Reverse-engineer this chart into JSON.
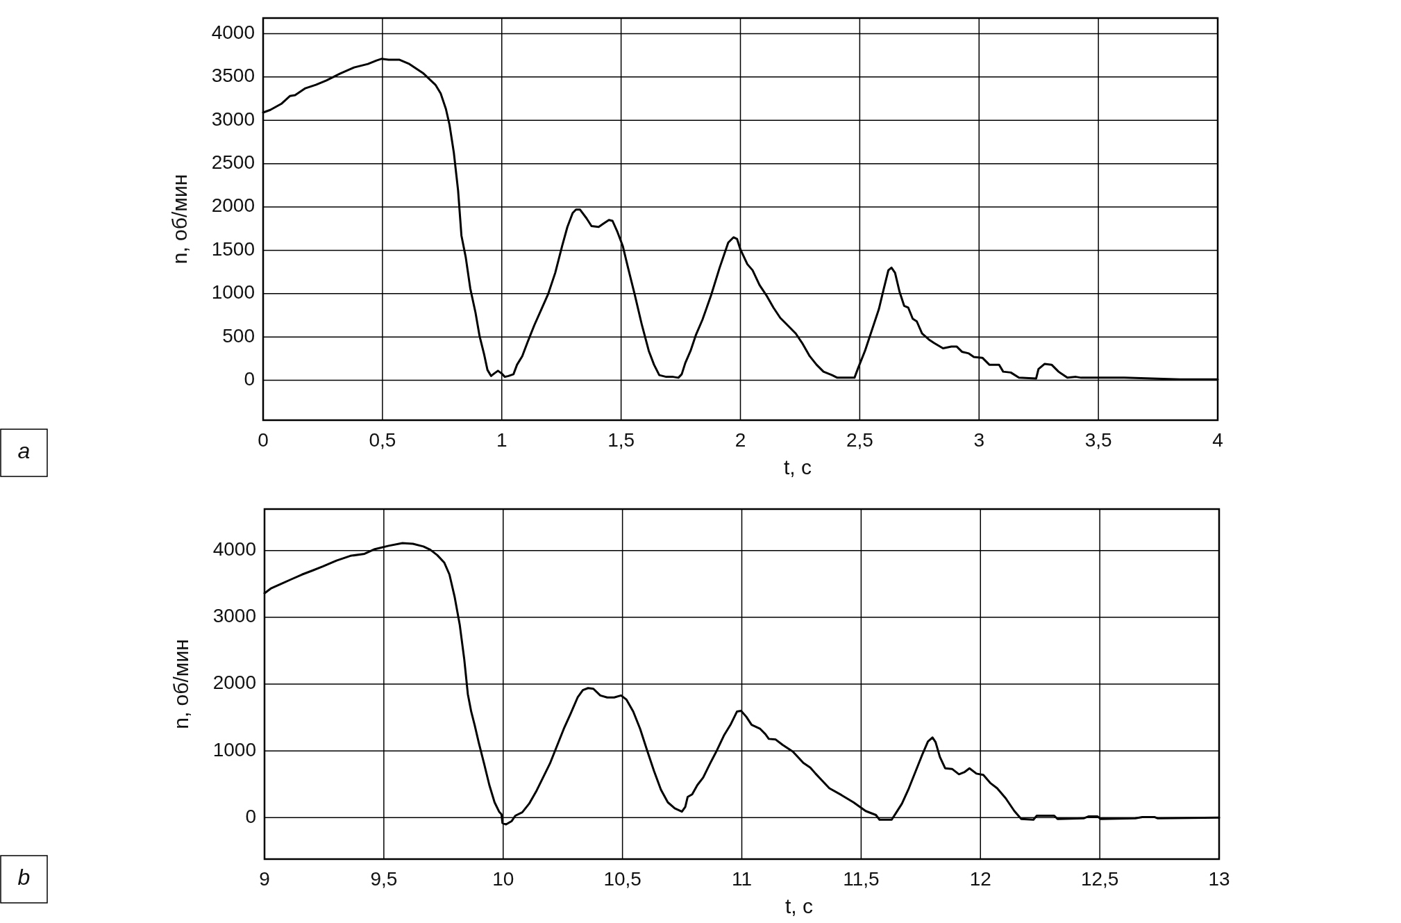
{
  "chart_data": [
    {
      "type": "line",
      "annotations": [
        "a"
      ],
      "xlabel": "t, с",
      "ylabel": "n, об/мин",
      "xlim": [
        0,
        4
      ],
      "ylim": [
        -460,
        4180
      ],
      "xticks": [
        0,
        {
          "value": 0.5,
          "label": "0,5"
        },
        1,
        {
          "value": 1.5,
          "label": "1,5"
        },
        2,
        {
          "value": 2.5,
          "label": "2,5"
        },
        3,
        {
          "value": 3.5,
          "label": "3,5"
        },
        4
      ],
      "yticks": [
        0,
        500,
        1000,
        1500,
        2000,
        2500,
        3000,
        3500,
        4000
      ],
      "grid": true,
      "series": [
        {
          "color": "#000000",
          "x": [
            0,
            0.03,
            0.076,
            0.112,
            0.134,
            0.177,
            0.221,
            0.265,
            0.323,
            0.381,
            0.439,
            0.475,
            0.497,
            0.526,
            0.57,
            0.613,
            0.672,
            0.722,
            0.744,
            0.766,
            0.781,
            0.799,
            0.817,
            0.831,
            0.849,
            0.868,
            0.89,
            0.907,
            0.926,
            0.94,
            0.955,
            0.969,
            0.984,
            0.999,
            1.013,
            1.028,
            1.049,
            1.064,
            1.086,
            1.108,
            1.137,
            1.166,
            1.195,
            1.224,
            1.253,
            1.275,
            1.297,
            1.311,
            1.328,
            1.355,
            1.376,
            1.406,
            1.427,
            1.449,
            1.464,
            1.485,
            1.507,
            1.529,
            1.558,
            1.587,
            1.616,
            1.638,
            1.66,
            1.689,
            1.718,
            1.74,
            1.754,
            1.769,
            1.791,
            1.813,
            1.841,
            1.877,
            1.913,
            1.949,
            1.971,
            1.986,
            2.0,
            2.029,
            2.051,
            2.08,
            2.109,
            2.138,
            2.167,
            2.196,
            2.232,
            2.261,
            2.29,
            2.319,
            2.348,
            2.384,
            2.406,
            2.478,
            2.493,
            2.522,
            2.551,
            2.58,
            2.601,
            2.62,
            2.633,
            2.648,
            2.667,
            2.686,
            2.703,
            2.722,
            2.739,
            2.761,
            2.79,
            2.812,
            2.849,
            2.884,
            2.906,
            2.928,
            2.957,
            2.978,
            3.014,
            3.043,
            3.084,
            3.101,
            3.133,
            3.167,
            3.239,
            3.249,
            3.275,
            3.304,
            3.333,
            3.37,
            3.406,
            3.428,
            3.609,
            3.841,
            4.0
          ],
          "values": [
            3090,
            3120,
            3190,
            3280,
            3290,
            3370,
            3410,
            3460,
            3540,
            3610,
            3650,
            3690,
            3710,
            3700,
            3700,
            3650,
            3540,
            3410,
            3310,
            3130,
            2950,
            2630,
            2190,
            1670,
            1420,
            1060,
            780,
            510,
            300,
            120,
            50,
            80,
            110,
            80,
            40,
            50,
            70,
            180,
            280,
            440,
            640,
            820,
            1000,
            1240,
            1550,
            1770,
            1930,
            1970,
            1970,
            1870,
            1780,
            1770,
            1810,
            1850,
            1840,
            1710,
            1550,
            1300,
            980,
            640,
            340,
            180,
            60,
            40,
            40,
            30,
            70,
            200,
            340,
            520,
            700,
            980,
            1300,
            1590,
            1650,
            1630,
            1510,
            1340,
            1270,
            1100,
            980,
            840,
            720,
            640,
            540,
            420,
            280,
            180,
            100,
            60,
            30,
            30,
            140,
            340,
            580,
            820,
            1060,
            1270,
            1300,
            1240,
            1020,
            860,
            840,
            710,
            680,
            540,
            470,
            430,
            370,
            390,
            390,
            330,
            310,
            270,
            260,
            180,
            180,
            100,
            90,
            30,
            20,
            130,
            190,
            180,
            100,
            30,
            40,
            30,
            30,
            10,
            10
          ]
        }
      ]
    },
    {
      "type": "line",
      "annotations": [
        "b"
      ],
      "xlabel": "t, с",
      "ylabel": "n, об/мин",
      "xlim": [
        9,
        13
      ],
      "ylim": [
        -620,
        4620
      ],
      "xticks": [
        9,
        {
          "value": 9.5,
          "label": "9,5"
        },
        10,
        {
          "value": 10.5,
          "label": "10,5"
        },
        11,
        {
          "value": 11.5,
          "label": "11,5"
        },
        12,
        {
          "value": 12.5,
          "label": "12,5"
        },
        13
      ],
      "yticks": [
        0,
        1000,
        2000,
        3000,
        4000
      ],
      "grid": true,
      "series": [
        {
          "color": "#000000",
          "x": [
            9.0,
            9.026,
            9.07,
            9.113,
            9.157,
            9.201,
            9.244,
            9.302,
            9.36,
            9.419,
            9.462,
            9.52,
            9.578,
            9.622,
            9.666,
            9.695,
            9.724,
            9.753,
            9.775,
            9.797,
            9.818,
            9.837,
            9.852,
            9.866,
            9.881,
            9.898,
            9.92,
            9.942,
            9.964,
            9.983,
            9.993,
            9.997,
            10.012,
            10.036,
            10.051,
            10.08,
            10.109,
            10.138,
            10.167,
            10.196,
            10.225,
            10.254,
            10.283,
            10.312,
            10.334,
            10.356,
            10.378,
            10.407,
            10.436,
            10.465,
            10.494,
            10.516,
            10.545,
            10.574,
            10.603,
            10.632,
            10.661,
            10.69,
            10.719,
            10.749,
            10.763,
            10.773,
            10.792,
            10.814,
            10.838,
            10.867,
            10.896,
            10.925,
            10.954,
            10.98,
            10.997,
            11.019,
            11.041,
            11.077,
            11.099,
            11.113,
            11.142,
            11.171,
            11.214,
            11.258,
            11.287,
            11.309,
            11.338,
            11.367,
            11.417,
            11.468,
            11.519,
            11.562,
            11.577,
            11.628,
            11.646,
            11.671,
            11.7,
            11.729,
            11.758,
            11.78,
            11.799,
            11.812,
            11.83,
            11.852,
            11.881,
            11.91,
            11.932,
            11.954,
            11.983,
            12.012,
            12.041,
            12.07,
            12.106,
            12.142,
            12.171,
            12.222,
            12.236,
            12.309,
            12.323,
            12.432,
            12.454,
            12.49,
            12.504,
            12.649,
            12.678,
            12.729,
            12.743,
            13.0
          ],
          "values": [
            3360,
            3430,
            3500,
            3570,
            3640,
            3700,
            3760,
            3850,
            3920,
            3950,
            4020,
            4070,
            4110,
            4100,
            4060,
            4010,
            3930,
            3820,
            3640,
            3300,
            2890,
            2370,
            1850,
            1590,
            1380,
            1120,
            810,
            490,
            230,
            90,
            50,
            -80,
            -100,
            -50,
            30,
            80,
            210,
            390,
            600,
            810,
            1070,
            1330,
            1560,
            1800,
            1910,
            1940,
            1930,
            1830,
            1800,
            1800,
            1830,
            1770,
            1590,
            1330,
            1010,
            700,
            420,
            230,
            140,
            90,
            160,
            310,
            350,
            490,
            600,
            810,
            1010,
            1230,
            1400,
            1590,
            1600,
            1510,
            1390,
            1330,
            1250,
            1180,
            1170,
            1090,
            990,
            820,
            750,
            660,
            550,
            440,
            340,
            230,
            100,
            40,
            -30,
            -30,
            70,
            210,
            440,
            700,
            960,
            1140,
            1200,
            1130,
            910,
            740,
            730,
            650,
            680,
            740,
            660,
            640,
            520,
            440,
            290,
            100,
            -20,
            -30,
            30,
            30,
            -20,
            -10,
            20,
            20,
            -20,
            -10,
            10,
            10,
            -10,
            0
          ]
        }
      ]
    }
  ]
}
